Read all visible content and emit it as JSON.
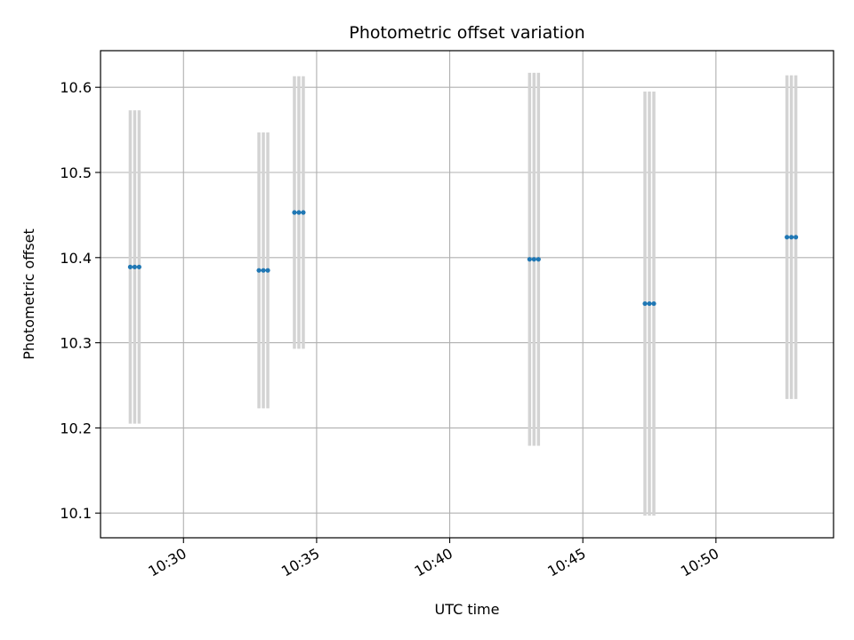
{
  "chart_data": {
    "type": "scatter",
    "title": "Photometric offset variation",
    "xlabel": "UTC time",
    "ylabel": "Photometric offset",
    "xlim": [
      "10:26:53",
      "10:54:25"
    ],
    "ylim": [
      10.071,
      10.643
    ],
    "x_ticks": [
      "10:30",
      "10:35",
      "10:40",
      "10:45",
      "10:50"
    ],
    "y_ticks": [
      10.1,
      10.2,
      10.3,
      10.4,
      10.5,
      10.6
    ],
    "grid": true,
    "marker_color": "#1f77b4",
    "errorbar_color": "#d3d3d3",
    "groups": [
      {
        "x": [
          "10:28:00",
          "10:28:10",
          "10:28:20"
        ],
        "y": 10.389,
        "err": 0.184
      },
      {
        "x": [
          "10:32:50",
          "10:33:00",
          "10:33:10"
        ],
        "y": 10.385,
        "err": 0.162
      },
      {
        "x": [
          "10:34:10",
          "10:34:20",
          "10:34:30"
        ],
        "y": 10.453,
        "err": 0.16
      },
      {
        "x": [
          "10:43:00",
          "10:43:10",
          "10:43:20"
        ],
        "y": 10.398,
        "err": 0.219
      },
      {
        "x": [
          "10:47:20",
          "10:47:30",
          "10:47:40"
        ],
        "y": 10.346,
        "err": 0.249
      },
      {
        "x": [
          "10:52:40",
          "10:52:50",
          "10:53:00"
        ],
        "y": 10.424,
        "err": 0.19
      }
    ]
  }
}
